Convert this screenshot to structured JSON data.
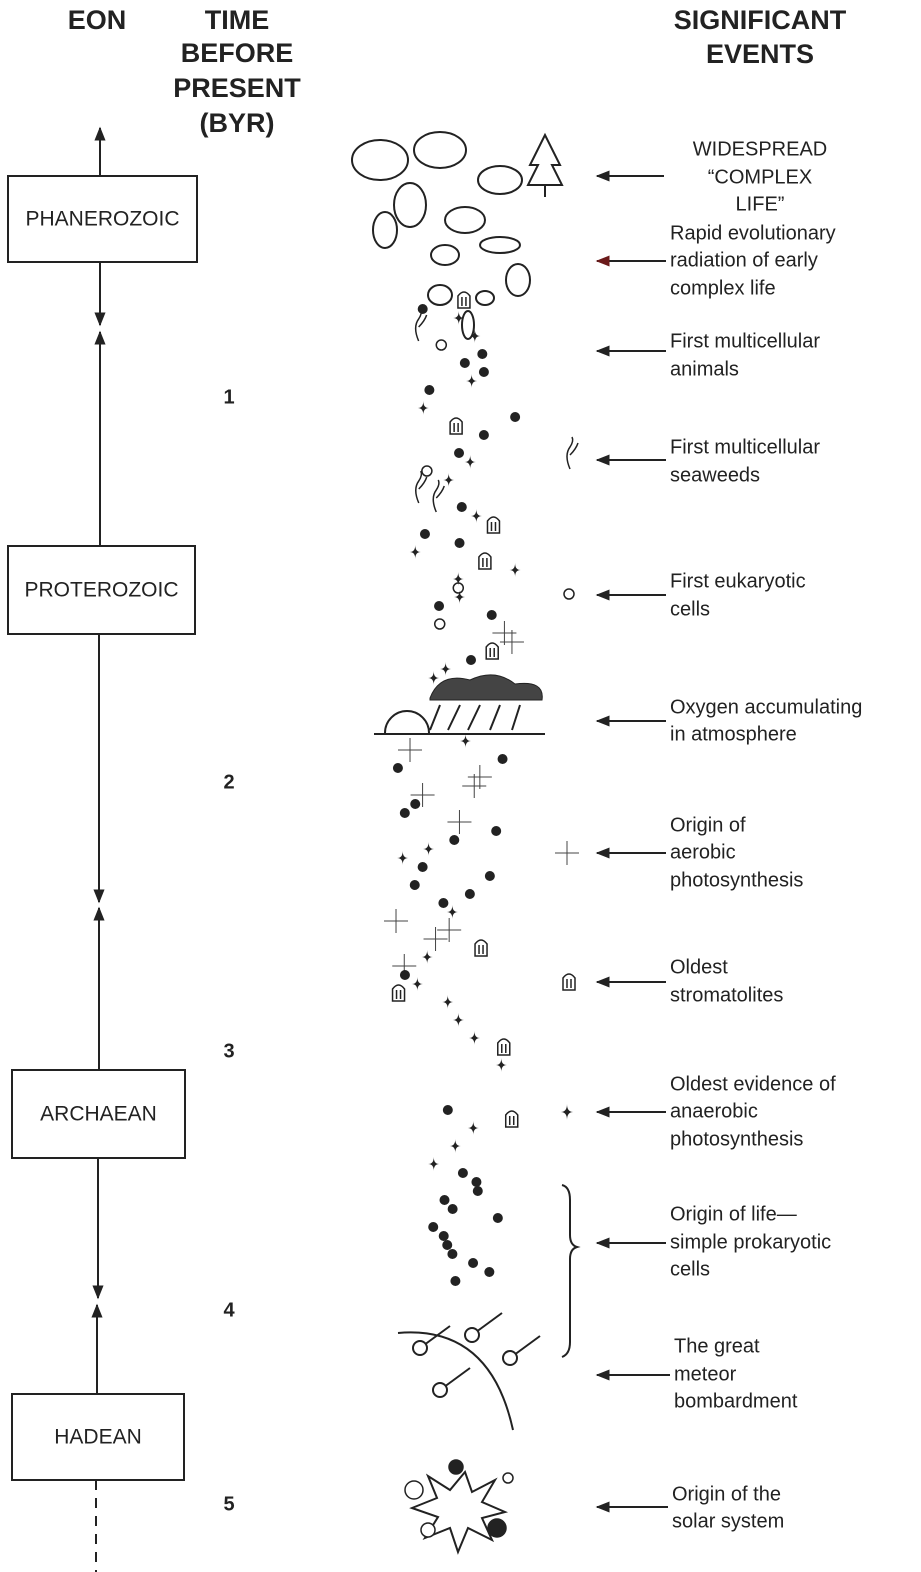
{
  "header": {
    "eon": "EON",
    "time_lines": [
      "TIME",
      "BEFORE",
      "PRESENT",
      "(BYR)"
    ],
    "events_lines": [
      "SIGNIFICANT",
      "EVENTS"
    ]
  },
  "eons": [
    "PHANEROZOIC",
    "PROTEROZOIC",
    "ARCHAEAN",
    "HADEAN"
  ],
  "time_ticks": [
    "1",
    "2",
    "3",
    "4",
    "5"
  ],
  "events": [
    {
      "lines": [
        "WIDESPREAD",
        "“COMPLEX",
        "LIFE”"
      ]
    },
    {
      "lines": [
        "Rapid evolutionary",
        "radiation of early",
        "complex life"
      ]
    },
    {
      "lines": [
        "First multicellular",
        "animals"
      ]
    },
    {
      "lines": [
        "First multicellular",
        "seaweeds"
      ]
    },
    {
      "lines": [
        "First eukaryotic",
        "cells"
      ]
    },
    {
      "lines": [
        "Oxygen accumulating",
        "in atmosphere"
      ]
    },
    {
      "lines": [
        "Origin of",
        "aerobic",
        "photosynthesis"
      ]
    },
    {
      "lines": [
        "Oldest",
        "stromatolites"
      ]
    },
    {
      "lines": [
        "Oldest evidence of",
        "anaerobic",
        "photosynthesis"
      ]
    },
    {
      "lines": [
        "Origin of life—",
        "simple prokaryotic",
        "cells"
      ]
    },
    {
      "lines": [
        "The great",
        "meteor",
        "bombardment"
      ]
    },
    {
      "lines": [
        "Origin of the",
        "solar system"
      ]
    }
  ]
}
